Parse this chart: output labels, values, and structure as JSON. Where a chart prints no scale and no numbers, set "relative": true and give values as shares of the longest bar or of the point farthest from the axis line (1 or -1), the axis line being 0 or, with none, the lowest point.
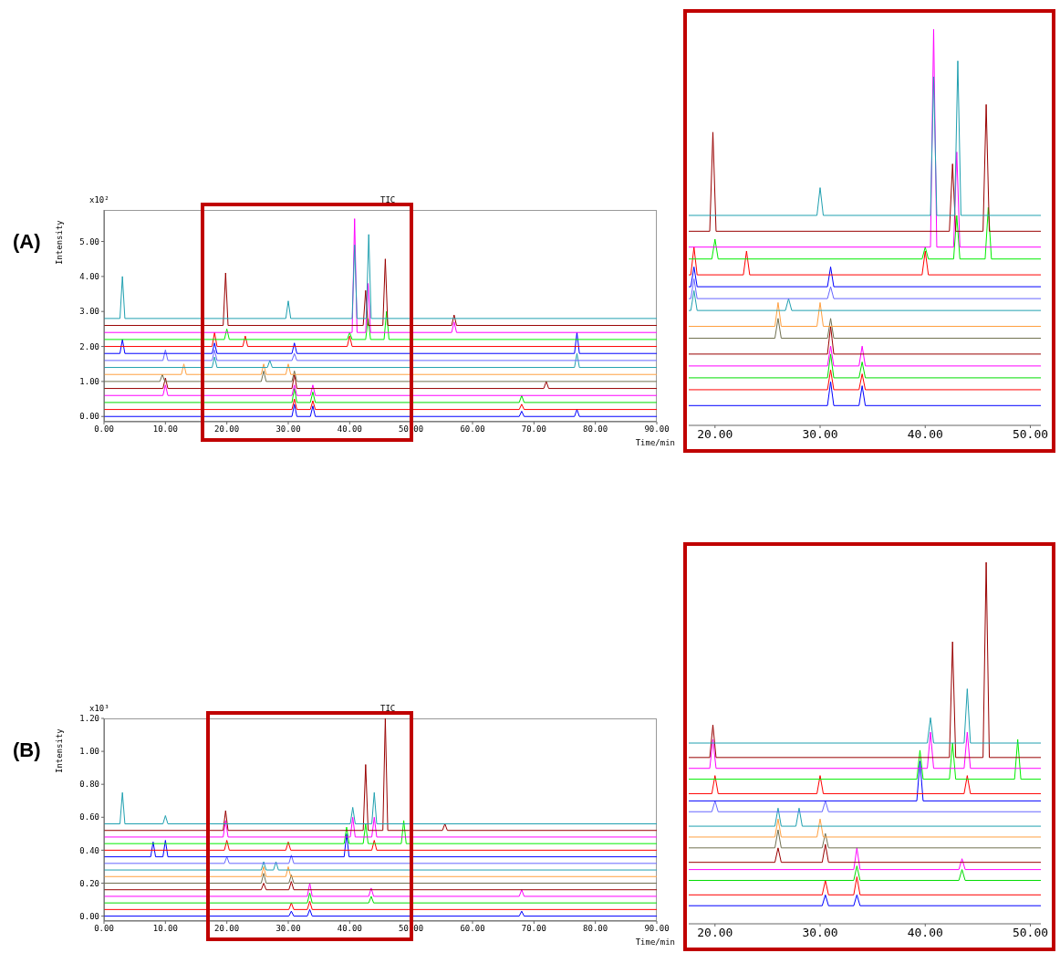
{
  "chart_data": [
    {
      "type": "line",
      "title": "TIC",
      "xlabel": "Time/min",
      "ylabel": "Intensity",
      "annotations": [
        "(A)",
        "x10²"
      ],
      "xlim": [
        0,
        90
      ],
      "xticks": [
        {
          "value": 0,
          "label": "0.00"
        },
        {
          "value": 10,
          "label": "10.00"
        },
        {
          "value": 20,
          "label": "20.00"
        },
        {
          "value": 30,
          "label": "30.00"
        },
        {
          "value": 40,
          "label": "40.00"
        },
        {
          "value": 50,
          "label": "50.00"
        },
        {
          "value": 60,
          "label": "60.00"
        },
        {
          "value": 70,
          "label": "70.00"
        },
        {
          "value": 80,
          "label": "80.00"
        },
        {
          "value": 90,
          "label": "90.00"
        }
      ],
      "ylim": [
        -0.15,
        5.9
      ],
      "yticks": [
        {
          "value": 0,
          "label": "0.00"
        },
        {
          "value": 1,
          "label": "1.00"
        },
        {
          "value": 2,
          "label": "2.00"
        },
        {
          "value": 3,
          "label": "3.00"
        },
        {
          "value": 4,
          "label": "4.00"
        },
        {
          "value": 5,
          "label": "5.00"
        }
      ],
      "series": [
        {
          "color": "#0000ff",
          "x": [
            0,
            30.6,
            31,
            31.4,
            33.6,
            34,
            34.4,
            67.6,
            68,
            68.4,
            76.6,
            77,
            77.4,
            90
          ],
          "values": [
            0,
            0,
            0.35,
            0,
            0,
            0.3,
            0,
            0,
            0.15,
            0,
            0,
            0.2,
            0,
            0
          ]
        },
        {
          "color": "#ff0000",
          "x": [
            0,
            30.6,
            31,
            31.4,
            33.6,
            34,
            34.4,
            67.6,
            68,
            68.4,
            90
          ],
          "values": [
            0.2,
            0.2,
            0.5,
            0.2,
            0.2,
            0.45,
            0.2,
            0.2,
            0.35,
            0.2,
            0.2
          ]
        },
        {
          "color": "#00dd00",
          "x": [
            0,
            30.6,
            31,
            31.4,
            33.6,
            34,
            34.4,
            67.6,
            68,
            68.4,
            90
          ],
          "values": [
            0.4,
            0.4,
            0.8,
            0.4,
            0.4,
            0.7,
            0.4,
            0.4,
            0.6,
            0.4,
            0.4
          ]
        },
        {
          "color": "#ff00ff",
          "x": [
            0,
            9.6,
            10,
            10.4,
            30.6,
            31,
            31.4,
            33.6,
            34,
            34.4,
            90
          ],
          "values": [
            0.6,
            0.6,
            0.9,
            0.6,
            0.6,
            0.9,
            0.6,
            0.6,
            0.9,
            0.6,
            0.6
          ]
        },
        {
          "color": "#990000",
          "x": [
            0,
            9.6,
            10,
            10.4,
            30.6,
            31,
            31.4,
            71.6,
            72,
            72.4,
            90
          ],
          "values": [
            0.8,
            0.8,
            1.1,
            0.8,
            0.8,
            1.2,
            0.8,
            0.8,
            1.0,
            0.8,
            0.8
          ]
        },
        {
          "color": "#707050",
          "x": [
            0,
            9.1,
            9.5,
            9.9,
            25.6,
            26,
            26.4,
            30.6,
            31,
            31.4,
            90
          ],
          "values": [
            1,
            1,
            1.2,
            1,
            1,
            1.3,
            1,
            1,
            1.3,
            1,
            1
          ]
        },
        {
          "color": "#ffa040",
          "x": [
            0,
            12.6,
            13,
            13.4,
            25.6,
            26,
            26.4,
            29.6,
            30,
            30.4,
            90
          ],
          "values": [
            1.2,
            1.2,
            1.5,
            1.2,
            1.2,
            1.5,
            1.2,
            1.2,
            1.5,
            1.2,
            1.2
          ]
        },
        {
          "color": "#20a0b0",
          "x": [
            0,
            17.6,
            18,
            18.4,
            26.6,
            27,
            27.4,
            76.6,
            77,
            77.4,
            90
          ],
          "values": [
            1.4,
            1.4,
            1.7,
            1.4,
            1.4,
            1.6,
            1.4,
            1.4,
            1.8,
            1.4,
            1.4
          ]
        },
        {
          "color": "#6666ff",
          "x": [
            0,
            9.6,
            10,
            10.4,
            17.6,
            18,
            18.4,
            30.6,
            31,
            31.4,
            90
          ],
          "values": [
            1.6,
            1.6,
            1.9,
            1.6,
            1.6,
            1.9,
            1.6,
            1.6,
            1.8,
            1.6,
            1.6
          ]
        },
        {
          "color": "#0000ff",
          "x": [
            0,
            2.6,
            3,
            3.4,
            17.6,
            18,
            18.4,
            30.6,
            31,
            31.4,
            76.6,
            77,
            77.4,
            90
          ],
          "values": [
            1.8,
            1.8,
            2.2,
            1.8,
            1.8,
            2.1,
            1.8,
            1.8,
            2.1,
            1.8,
            1.8,
            2.4,
            1.8,
            1.8
          ]
        },
        {
          "color": "#ff0000",
          "x": [
            0,
            17.6,
            18,
            18.4,
            22.6,
            23,
            23.4,
            39.6,
            40,
            40.4,
            90
          ],
          "values": [
            2,
            2,
            2.4,
            2,
            2,
            2.3,
            2,
            2,
            2.3,
            2,
            2
          ]
        },
        {
          "color": "#00ee00",
          "x": [
            0,
            19.6,
            20,
            20.4,
            39.6,
            40,
            40.4,
            42.6,
            43,
            43.4,
            45.6,
            46,
            46.4,
            90
          ],
          "values": [
            2.2,
            2.2,
            2.5,
            2.2,
            2.2,
            2.4,
            2.2,
            2.2,
            2.8,
            2.2,
            2.2,
            3.0,
            2.2,
            2.2
          ]
        },
        {
          "color": "#ff00ff",
          "x": [
            0,
            40.4,
            40.8,
            41.2,
            42.6,
            43,
            43.4,
            56.6,
            57,
            57.4,
            90
          ],
          "values": [
            2.4,
            2.4,
            5.65,
            2.4,
            2.4,
            3.8,
            2.4,
            2.4,
            2.7,
            2.4,
            2.4
          ]
        },
        {
          "color": "#990000",
          "x": [
            0,
            19.4,
            19.8,
            20.2,
            42.2,
            42.6,
            43,
            45.4,
            45.8,
            46.2,
            56.6,
            57,
            57.4,
            90
          ],
          "values": [
            2.6,
            2.6,
            4.1,
            2.6,
            2.6,
            3.6,
            2.6,
            2.6,
            4.5,
            2.6,
            2.6,
            2.9,
            2.6,
            2.6
          ]
        },
        {
          "color": "#20a0b0",
          "x": [
            0,
            2.6,
            3,
            3.4,
            29.6,
            30,
            30.4,
            40.4,
            40.8,
            41.2,
            42.7,
            43.1,
            43.5,
            90
          ],
          "values": [
            2.8,
            2.8,
            4.0,
            2.8,
            2.8,
            3.3,
            2.8,
            2.8,
            4.9,
            2.8,
            2.8,
            5.2,
            2.8,
            2.8
          ]
        }
      ]
    },
    {
      "type": "line",
      "relative": true,
      "tick_labels": "x",
      "xlim": [
        17.5,
        51
      ],
      "xticks": [
        {
          "value": 20,
          "label": "20.00"
        },
        {
          "value": 30,
          "label": "30.00"
        },
        {
          "value": 40,
          "label": "40.00"
        },
        {
          "value": 50,
          "label": "50.00"
        }
      ],
      "series": [
        {
          "color": "#0000ff",
          "x": [
            17.5,
            30.7,
            31,
            31.3,
            33.7,
            34,
            34.3,
            51
          ],
          "values": [
            0.05,
            0.05,
            0.11,
            0.05,
            0.05,
            0.1,
            0.05,
            0.05
          ]
        },
        {
          "color": "#ff0000",
          "x": [
            17.5,
            30.7,
            31,
            31.3,
            33.7,
            34,
            34.3,
            51
          ],
          "values": [
            0.09,
            0.09,
            0.14,
            0.09,
            0.09,
            0.13,
            0.09,
            0.09
          ]
        },
        {
          "color": "#00dd00",
          "x": [
            17.5,
            30.7,
            31,
            31.3,
            33.7,
            34,
            34.3,
            51
          ],
          "values": [
            0.12,
            0.12,
            0.18,
            0.12,
            0.12,
            0.16,
            0.12,
            0.12
          ]
        },
        {
          "color": "#ff00ff",
          "x": [
            17.5,
            30.7,
            31,
            31.3,
            33.7,
            34,
            34.3,
            51
          ],
          "values": [
            0.15,
            0.15,
            0.2,
            0.15,
            0.15,
            0.2,
            0.15,
            0.15
          ]
        },
        {
          "color": "#990000",
          "x": [
            17.5,
            30.7,
            31,
            31.3,
            51
          ],
          "values": [
            0.18,
            0.18,
            0.25,
            0.18,
            0.18
          ]
        },
        {
          "color": "#707050",
          "x": [
            17.5,
            25.7,
            26,
            26.3,
            30.7,
            31,
            31.3,
            51
          ],
          "values": [
            0.22,
            0.22,
            0.27,
            0.22,
            0.22,
            0.27,
            0.22,
            0.22
          ]
        },
        {
          "color": "#ffa040",
          "x": [
            17.5,
            25.7,
            26,
            26.3,
            29.7,
            30,
            30.3,
            51
          ],
          "values": [
            0.25,
            0.25,
            0.31,
            0.25,
            0.25,
            0.31,
            0.25,
            0.25
          ]
        },
        {
          "color": "#20a0b0",
          "x": [
            17.5,
            17.7,
            18,
            18.3,
            26.7,
            27,
            27.3,
            51
          ],
          "values": [
            0.29,
            0.29,
            0.34,
            0.29,
            0.29,
            0.32,
            0.29,
            0.29
          ]
        },
        {
          "color": "#6666ff",
          "x": [
            17.5,
            17.7,
            18,
            18.3,
            30.7,
            31,
            31.3,
            51
          ],
          "values": [
            0.32,
            0.32,
            0.37,
            0.32,
            0.32,
            0.35,
            0.32,
            0.32
          ]
        },
        {
          "color": "#0000ff",
          "x": [
            17.5,
            17.7,
            18,
            18.3,
            30.7,
            31,
            31.3,
            51
          ],
          "values": [
            0.35,
            0.35,
            0.4,
            0.35,
            0.35,
            0.4,
            0.35,
            0.35
          ]
        },
        {
          "color": "#ff0000",
          "x": [
            17.5,
            17.7,
            18,
            18.3,
            22.7,
            23,
            23.3,
            39.7,
            40,
            40.3,
            51
          ],
          "values": [
            0.38,
            0.38,
            0.45,
            0.38,
            0.38,
            0.44,
            0.38,
            0.38,
            0.44,
            0.38,
            0.38
          ]
        },
        {
          "color": "#00ee00",
          "x": [
            17.5,
            19.7,
            20,
            20.3,
            39.7,
            40,
            40.3,
            42.7,
            43,
            43.3,
            45.7,
            46,
            46.3,
            51
          ],
          "values": [
            0.42,
            0.42,
            0.47,
            0.42,
            0.42,
            0.45,
            0.42,
            0.42,
            0.53,
            0.42,
            0.42,
            0.55,
            0.42,
            0.42
          ]
        },
        {
          "color": "#ff00ff",
          "x": [
            17.5,
            40.5,
            40.8,
            41.1,
            42.7,
            43,
            43.3,
            51
          ],
          "values": [
            0.45,
            0.45,
            1,
            0.45,
            0.45,
            0.69,
            0.45,
            0.45
          ]
        },
        {
          "color": "#990000",
          "x": [
            17.5,
            19.5,
            19.8,
            20.1,
            42.3,
            42.6,
            42.9,
            45.5,
            45.8,
            46.1,
            51
          ],
          "values": [
            0.49,
            0.49,
            0.74,
            0.49,
            0.49,
            0.66,
            0.49,
            0.49,
            0.81,
            0.49,
            0.49
          ]
        },
        {
          "color": "#20a0b0",
          "x": [
            17.5,
            29.7,
            30,
            30.3,
            40.5,
            40.8,
            41.1,
            42.8,
            43.1,
            43.4,
            51
          ],
          "values": [
            0.53,
            0.53,
            0.6,
            0.53,
            0.53,
            0.88,
            0.53,
            0.53,
            0.92,
            0.53,
            0.53
          ]
        }
      ]
    },
    {
      "type": "line",
      "title": "TIC",
      "xlabel": "Time/min",
      "ylabel": "Intensity",
      "annotations": [
        "(B)",
        "x10³"
      ],
      "xlim": [
        0,
        90
      ],
      "xticks": [
        {
          "value": 0,
          "label": "0.00"
        },
        {
          "value": 10,
          "label": "10.00"
        },
        {
          "value": 20,
          "label": "20.00"
        },
        {
          "value": 30,
          "label": "30.00"
        },
        {
          "value": 40,
          "label": "40.00"
        },
        {
          "value": 50,
          "label": "50.00"
        },
        {
          "value": 60,
          "label": "60.00"
        },
        {
          "value": 70,
          "label": "70.00"
        },
        {
          "value": 80,
          "label": "80.00"
        },
        {
          "value": 90,
          "label": "90.00"
        }
      ],
      "ylim": [
        -0.03,
        1.2
      ],
      "yticks": [
        {
          "value": 0,
          "label": "0.00"
        },
        {
          "value": 0.2,
          "label": "0.20"
        },
        {
          "value": 0.4,
          "label": "0.40"
        },
        {
          "value": 0.6,
          "label": "0.60"
        },
        {
          "value": 0.8,
          "label": "0.80"
        },
        {
          "value": 1,
          "label": "1.00"
        },
        {
          "value": 1.2,
          "label": "1.20"
        }
      ],
      "series": [
        {
          "color": "#0000ff",
          "x": [
            0,
            30.1,
            30.5,
            30.9,
            33.1,
            33.5,
            33.9,
            67.6,
            68,
            68.4,
            90
          ],
          "values": [
            0,
            0,
            0.03,
            0,
            0,
            0.04,
            0,
            0,
            0.03,
            0,
            0
          ]
        },
        {
          "color": "#ff0000",
          "x": [
            0,
            30.1,
            30.5,
            30.9,
            33.1,
            33.5,
            33.9,
            90
          ],
          "values": [
            0.04,
            0.04,
            0.08,
            0.04,
            0.04,
            0.09,
            0.04,
            0.04
          ]
        },
        {
          "color": "#00dd00",
          "x": [
            0,
            33.1,
            33.5,
            33.9,
            43.1,
            43.5,
            43.9,
            90
          ],
          "values": [
            0.08,
            0.08,
            0.14,
            0.08,
            0.08,
            0.12,
            0.08,
            0.08
          ]
        },
        {
          "color": "#ff00ff",
          "x": [
            0,
            33.1,
            33.5,
            33.9,
            43.1,
            43.5,
            43.9,
            67.6,
            68,
            68.4,
            90
          ],
          "values": [
            0.12,
            0.12,
            0.2,
            0.12,
            0.12,
            0.17,
            0.12,
            0.12,
            0.16,
            0.12,
            0.12
          ]
        },
        {
          "color": "#990000",
          "x": [
            0,
            25.6,
            26,
            26.4,
            30.1,
            30.5,
            30.9,
            90
          ],
          "values": [
            0.16,
            0.16,
            0.2,
            0.16,
            0.16,
            0.21,
            0.16,
            0.16
          ]
        },
        {
          "color": "#707050",
          "x": [
            0,
            25.6,
            26,
            26.4,
            30.1,
            30.5,
            30.9,
            90
          ],
          "values": [
            0.2,
            0.2,
            0.26,
            0.2,
            0.2,
            0.25,
            0.2,
            0.2
          ]
        },
        {
          "color": "#ffa040",
          "x": [
            0,
            25.6,
            26,
            26.4,
            29.6,
            30,
            30.4,
            90
          ],
          "values": [
            0.24,
            0.24,
            0.3,
            0.24,
            0.24,
            0.3,
            0.24,
            0.24
          ]
        },
        {
          "color": "#20a0b0",
          "x": [
            0,
            25.6,
            26,
            26.4,
            27.6,
            28,
            28.4,
            90
          ],
          "values": [
            0.28,
            0.28,
            0.33,
            0.28,
            0.28,
            0.33,
            0.28,
            0.28
          ]
        },
        {
          "color": "#6666ff",
          "x": [
            0,
            19.6,
            20,
            20.4,
            30.1,
            30.5,
            30.9,
            90
          ],
          "values": [
            0.32,
            0.32,
            0.36,
            0.32,
            0.32,
            0.37,
            0.32,
            0.32
          ]
        },
        {
          "color": "#0000ff",
          "x": [
            0,
            7.6,
            8,
            8.4,
            9.6,
            10,
            10.4,
            39.1,
            39.5,
            39.9,
            90
          ],
          "values": [
            0.36,
            0.36,
            0.45,
            0.36,
            0.36,
            0.46,
            0.36,
            0.36,
            0.5,
            0.36,
            0.36
          ]
        },
        {
          "color": "#ff0000",
          "x": [
            0,
            19.6,
            20,
            20.4,
            29.6,
            30,
            30.4,
            43.6,
            44,
            44.4,
            90
          ],
          "values": [
            0.4,
            0.4,
            0.46,
            0.4,
            0.4,
            0.45,
            0.4,
            0.4,
            0.46,
            0.4,
            0.4
          ]
        },
        {
          "color": "#00ee00",
          "x": [
            0,
            39.1,
            39.5,
            39.9,
            42.2,
            42.6,
            43,
            48.4,
            48.8,
            49.2,
            90
          ],
          "values": [
            0.44,
            0.44,
            0.54,
            0.44,
            0.44,
            0.56,
            0.44,
            0.44,
            0.58,
            0.44,
            0.44
          ]
        },
        {
          "color": "#ff00ff",
          "x": [
            0,
            19.4,
            19.8,
            20.2,
            40.1,
            40.5,
            40.9,
            43.6,
            44,
            44.4,
            90
          ],
          "values": [
            0.48,
            0.48,
            0.58,
            0.48,
            0.48,
            0.6,
            0.48,
            0.48,
            0.6,
            0.48,
            0.48
          ]
        },
        {
          "color": "#990000",
          "x": [
            0,
            19.4,
            19.8,
            20.2,
            42.2,
            42.6,
            43,
            45.4,
            45.8,
            46.2,
            55.1,
            55.5,
            55.9,
            90
          ],
          "values": [
            0.52,
            0.52,
            0.64,
            0.52,
            0.52,
            0.92,
            0.52,
            0.52,
            1.2,
            0.52,
            0.52,
            0.56,
            0.52,
            0.52
          ]
        },
        {
          "color": "#20a0b0",
          "x": [
            0,
            2.6,
            3,
            3.4,
            9.6,
            10,
            10.4,
            40.1,
            40.5,
            40.9,
            43.6,
            44,
            44.4,
            90
          ],
          "values": [
            0.56,
            0.56,
            0.75,
            0.56,
            0.56,
            0.61,
            0.56,
            0.56,
            0.66,
            0.56,
            0.56,
            0.75,
            0.56,
            0.56
          ]
        }
      ]
    },
    {
      "type": "line",
      "relative": true,
      "tick_labels": "x",
      "xlim": [
        17.5,
        51
      ],
      "xticks": [
        {
          "value": 20,
          "label": "20.00"
        },
        {
          "value": 30,
          "label": "30.00"
        },
        {
          "value": 40,
          "label": "40.00"
        },
        {
          "value": 50,
          "label": "50.00"
        }
      ],
      "series": [
        {
          "color": "#0000ff",
          "x": [
            17.5,
            30.2,
            30.5,
            30.8,
            33.2,
            33.5,
            33.8,
            51
          ],
          "values": [
            0.05,
            0.05,
            0.08,
            0.05,
            0.05,
            0.08,
            0.05,
            0.05
          ]
        },
        {
          "color": "#ff0000",
          "x": [
            17.5,
            30.2,
            30.5,
            30.8,
            33.2,
            33.5,
            33.8,
            51
          ],
          "values": [
            0.08,
            0.08,
            0.12,
            0.08,
            0.08,
            0.13,
            0.08,
            0.08
          ]
        },
        {
          "color": "#00dd00",
          "x": [
            17.5,
            33.2,
            33.5,
            33.8,
            43.2,
            43.5,
            43.8,
            51
          ],
          "values": [
            0.12,
            0.12,
            0.16,
            0.12,
            0.12,
            0.15,
            0.12,
            0.12
          ]
        },
        {
          "color": "#ff00ff",
          "x": [
            17.5,
            33.2,
            33.5,
            33.8,
            43.2,
            43.5,
            43.8,
            51
          ],
          "values": [
            0.15,
            0.15,
            0.21,
            0.15,
            0.15,
            0.18,
            0.15,
            0.15
          ]
        },
        {
          "color": "#990000",
          "x": [
            17.5,
            25.7,
            26,
            26.3,
            30.2,
            30.5,
            30.8,
            51
          ],
          "values": [
            0.17,
            0.17,
            0.21,
            0.17,
            0.17,
            0.22,
            0.17,
            0.17
          ]
        },
        {
          "color": "#707050",
          "x": [
            17.5,
            25.7,
            26,
            26.3,
            30.2,
            30.5,
            30.8,
            51
          ],
          "values": [
            0.21,
            0.21,
            0.26,
            0.21,
            0.21,
            0.25,
            0.21,
            0.21
          ]
        },
        {
          "color": "#ffa040",
          "x": [
            17.5,
            25.7,
            26,
            26.3,
            29.7,
            30,
            30.3,
            51
          ],
          "values": [
            0.24,
            0.24,
            0.29,
            0.24,
            0.24,
            0.29,
            0.24,
            0.24
          ]
        },
        {
          "color": "#20a0b0",
          "x": [
            17.5,
            25.7,
            26,
            26.3,
            27.7,
            28,
            28.3,
            51
          ],
          "values": [
            0.27,
            0.27,
            0.32,
            0.27,
            0.27,
            0.32,
            0.27,
            0.27
          ]
        },
        {
          "color": "#6666ff",
          "x": [
            17.5,
            19.7,
            20,
            20.3,
            30.2,
            30.5,
            30.8,
            51
          ],
          "values": [
            0.31,
            0.31,
            0.34,
            0.31,
            0.31,
            0.34,
            0.31,
            0.31
          ]
        },
        {
          "color": "#0000ff",
          "x": [
            17.5,
            39.2,
            39.5,
            39.8,
            51
          ],
          "values": [
            0.34,
            0.34,
            0.45,
            0.34,
            0.34
          ]
        },
        {
          "color": "#ff0000",
          "x": [
            17.5,
            19.7,
            20,
            20.3,
            29.7,
            30,
            30.3,
            43.7,
            44,
            44.3,
            51
          ],
          "values": [
            0.36,
            0.36,
            0.41,
            0.36,
            0.36,
            0.41,
            0.36,
            0.36,
            0.41,
            0.36,
            0.36
          ]
        },
        {
          "color": "#00ee00",
          "x": [
            17.5,
            39.2,
            39.5,
            39.8,
            42.3,
            42.6,
            42.9,
            48.5,
            48.8,
            49.1,
            51
          ],
          "values": [
            0.4,
            0.4,
            0.48,
            0.4,
            0.4,
            0.5,
            0.4,
            0.4,
            0.51,
            0.4,
            0.4
          ]
        },
        {
          "color": "#ff00ff",
          "x": [
            17.5,
            19.5,
            19.8,
            20.1,
            40.2,
            40.5,
            40.8,
            43.7,
            44,
            44.3,
            51
          ],
          "values": [
            0.43,
            0.43,
            0.51,
            0.43,
            0.43,
            0.53,
            0.43,
            0.43,
            0.53,
            0.43,
            0.43
          ]
        },
        {
          "color": "#990000",
          "x": [
            17.5,
            19.5,
            19.8,
            20.1,
            42.3,
            42.6,
            42.9,
            45.5,
            45.8,
            46.1,
            51
          ],
          "values": [
            0.46,
            0.46,
            0.55,
            0.46,
            0.46,
            0.78,
            0.46,
            0.46,
            1,
            0.46,
            0.46
          ]
        },
        {
          "color": "#20a0b0",
          "x": [
            17.5,
            40.2,
            40.5,
            40.8,
            43.7,
            44,
            44.3,
            51
          ],
          "values": [
            0.5,
            0.5,
            0.57,
            0.5,
            0.5,
            0.65,
            0.5,
            0.5
          ]
        }
      ]
    }
  ]
}
